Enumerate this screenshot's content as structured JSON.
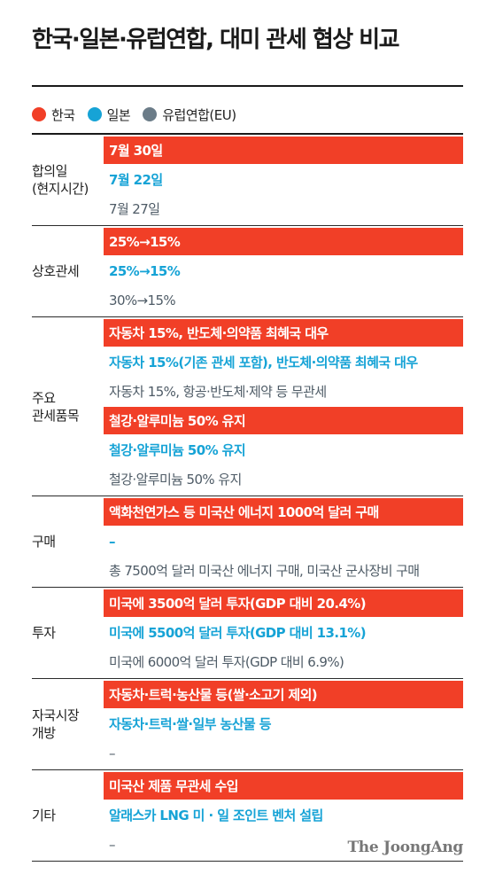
{
  "title": "한국·일본·유럽연합, 대미 관세 협상 비교",
  "legend": [
    {
      "label": "한국",
      "color": "#f13f27"
    },
    {
      "label": "일본",
      "color": "#16a3d6"
    },
    {
      "label": "유럽연합(EU)",
      "color": "#6b7c88"
    }
  ],
  "sections": [
    {
      "label": "합의일\n(현지시간)",
      "rows": [
        {
          "type": "kr",
          "text": "7월 30일"
        },
        {
          "type": "jp",
          "text": "7월 22일"
        },
        {
          "type": "eu",
          "text": "7월 27일"
        }
      ]
    },
    {
      "label": "상호관세",
      "rows": [
        {
          "type": "kr",
          "text": "25%→15%"
        },
        {
          "type": "jp",
          "text": "25%→15%"
        },
        {
          "type": "eu",
          "text": "30%→15%"
        }
      ]
    },
    {
      "label": "주요\n관세품목",
      "rows": [
        {
          "type": "kr",
          "text": "자동차 15%, 반도체·의약품 최혜국 대우"
        },
        {
          "type": "jp",
          "text": "자동차 15%(기존 관세 포함), 반도체·의약품 최혜국 대우"
        },
        {
          "type": "eu",
          "text": "자동차 15%, 항공·반도체·제약 등 무관세"
        },
        {
          "type": "kr",
          "text": "철강·알루미늄 50% 유지"
        },
        {
          "type": "jp",
          "text": "철강·알루미늄 50% 유지"
        },
        {
          "type": "eu",
          "text": "철강·알루미늄 50% 유지"
        }
      ]
    },
    {
      "label": "구매",
      "rows": [
        {
          "type": "kr",
          "text": "액화천연가스 등 미국산 에너지 1000억 달러 구매"
        },
        {
          "type": "jp",
          "text": "–"
        },
        {
          "type": "eu",
          "text": "총 7500억 달러 미국산 에너지 구매, 미국산 군사장비 구매"
        }
      ]
    },
    {
      "label": "투자",
      "rows": [
        {
          "type": "kr",
          "text": "미국에 3500억 달러 투자(GDP 대비 20.4%)"
        },
        {
          "type": "jp",
          "text": "미국에 5500억 달러 투자(GDP 대비 13.1%)"
        },
        {
          "type": "eu",
          "text": "미국에 6000억 달러 투자(GDP 대비 6.9%)"
        }
      ]
    },
    {
      "label": "자국시장\n개방",
      "rows": [
        {
          "type": "kr",
          "text": "자동차·트럭·농산물 등(쌀·소고기 제외)"
        },
        {
          "type": "jp",
          "text": "자동차·트럭·쌀·일부 농산물 등"
        },
        {
          "type": "eu",
          "text": "–"
        }
      ]
    },
    {
      "label": "기타",
      "rows": [
        {
          "type": "kr",
          "text": "미국산 제품 무관세 수입"
        },
        {
          "type": "jp",
          "text": "알래스카 LNG 미 · 일 조인트 벤처 설립"
        },
        {
          "type": "eu",
          "text": "–"
        }
      ]
    }
  ],
  "brand": "The JoongAng"
}
